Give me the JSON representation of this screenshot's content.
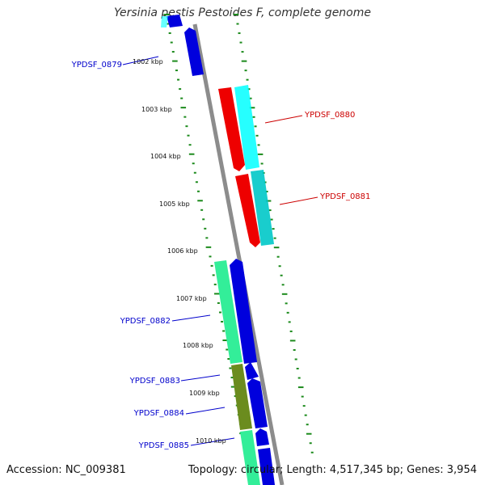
{
  "title": "Yersinia pestis Pestoides F, complete genome",
  "footer": {
    "accession": "Accession: NC_009381",
    "summary": "Topology: circular; Length: 4,517,345 bp; Genes: 3,954"
  },
  "colors": {
    "backbone": "#8c8c8c",
    "tick_outer": "#1b8a1b",
    "tick_inner": "#1b8a1b",
    "label_blue": "#0000cc",
    "label_red": "#cc0000",
    "line_blue": "#0000cc",
    "line_red": "#cc0000"
  },
  "axis": {
    "ticks": [
      {
        "kbp": 1002,
        "label": "1002 kbp"
      },
      {
        "kbp": 1003,
        "label": "1003 kbp"
      },
      {
        "kbp": 1004,
        "label": "1004 kbp"
      },
      {
        "kbp": 1005,
        "label": "1005 kbp"
      },
      {
        "kbp": 1006,
        "label": "1006 kbp"
      },
      {
        "kbp": 1007,
        "label": "1007 kbp"
      },
      {
        "kbp": 1008,
        "label": "1008 kbp"
      },
      {
        "kbp": 1009,
        "label": "1009 kbp"
      },
      {
        "kbp": 1010,
        "label": "1010 kbp"
      }
    ]
  },
  "genes": [
    {
      "name": "YPDSF_0879",
      "label_side": "left",
      "label_color": "blue"
    },
    {
      "name": "YPDSF_0880",
      "label_side": "right",
      "label_color": "red"
    },
    {
      "name": "YPDSF_0881",
      "label_side": "right",
      "label_color": "red"
    },
    {
      "name": "YPDSF_0882",
      "label_side": "left",
      "label_color": "blue"
    },
    {
      "name": "YPDSF_0883",
      "label_side": "left",
      "label_color": "blue"
    },
    {
      "name": "YPDSF_0884",
      "label_side": "left",
      "label_color": "blue"
    },
    {
      "name": "YPDSF_0885",
      "label_side": "left",
      "label_color": "blue"
    }
  ]
}
